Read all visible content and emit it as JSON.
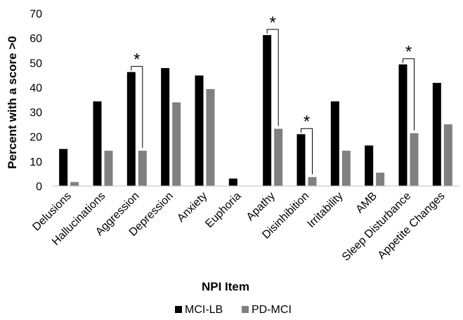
{
  "chart_data": {
    "type": "bar",
    "title": "",
    "xlabel": "NPI Item",
    "ylabel": "Percent with a score >0",
    "ylim": [
      0,
      70
    ],
    "yticks": [
      0,
      10,
      20,
      30,
      40,
      50,
      60,
      70
    ],
    "grid": false,
    "legend_position": "bottom",
    "categories": [
      "Delusions",
      "Hallucinations",
      "Aggression",
      "Depression",
      "Anxiety",
      "Euphoria",
      "Apathy",
      "Disinhibition",
      "Irritability",
      "AMB",
      "Sleep Disturbance",
      "Appetite Changes"
    ],
    "series": [
      {
        "name": "MCI-LB",
        "color": "#000000",
        "values": [
          15,
          34.3,
          46.2,
          47.8,
          44.8,
          3,
          61.2,
          21,
          34.3,
          16.4,
          49.3,
          41.8
        ]
      },
      {
        "name": "PD-MCI",
        "color": "#808080",
        "values": [
          1.6,
          14.3,
          14.3,
          33.9,
          39.3,
          0,
          23.2,
          3.6,
          14.3,
          5.4,
          21.4,
          25
        ]
      }
    ],
    "annotations": [
      {
        "category": "Aggression",
        "text": "*"
      },
      {
        "category": "Apathy",
        "text": "*"
      },
      {
        "category": "Disinhibition",
        "text": "*"
      },
      {
        "category": "Sleep Disturbance",
        "text": "*"
      }
    ]
  }
}
